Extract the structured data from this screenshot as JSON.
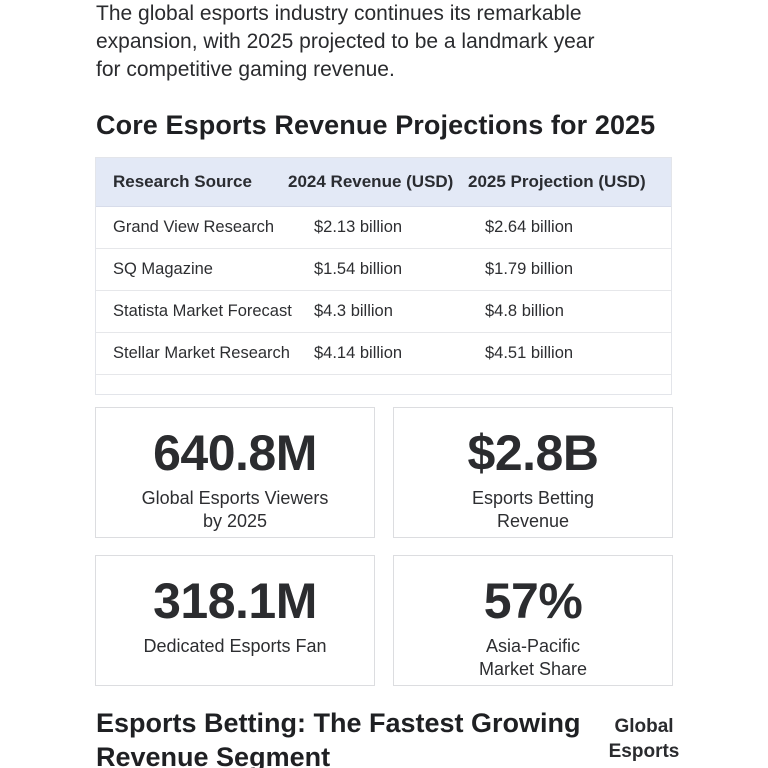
{
  "intro": {
    "lines": [
      "The global esports industry continues its remarkable",
      "expansion, with 2025 projected to be a landmark year",
      "for competitive gaming revenue."
    ]
  },
  "section_title": "Core Esports Revenue Projections for 2025",
  "table": {
    "headers": [
      "Research Source",
      "2024 Revenue (USD)",
      "2025 Projection (USD)"
    ],
    "rows": [
      [
        "Grand View Research",
        "$2.13 billion",
        "$2.64 billion"
      ],
      [
        "SQ Magazine",
        "$1.54 billion",
        "$1.79 billion"
      ],
      [
        "Statista Market Forecast",
        "$4.3 billion",
        "$4.8 billion"
      ],
      [
        "Stellar Market Research",
        "$4.14 billion",
        "$4.51 billion"
      ]
    ]
  },
  "stats": [
    {
      "value": "640.8M",
      "label_lines": [
        "Global Esports Viewers",
        "by 2025"
      ]
    },
    {
      "value": "$2.8B",
      "label_lines": [
        "Esports Betting",
        "Revenue"
      ]
    },
    {
      "value": "318.1M",
      "label_lines": [
        "Dedicated Esports Fan"
      ]
    },
    {
      "value": "57%",
      "label_lines": [
        "Asia-Pacific",
        "Market Share"
      ]
    }
  ],
  "next_section": {
    "title_lines": [
      "Esports Betting: The Fastest Growing",
      "Revenue Segment"
    ]
  },
  "side_label": {
    "lines": [
      "Global",
      "Esports"
    ]
  }
}
